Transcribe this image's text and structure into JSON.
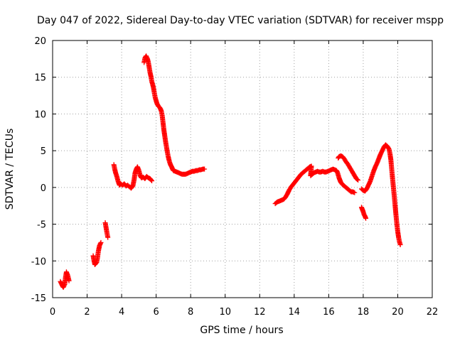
{
  "chart_data": {
    "type": "scatter",
    "title": "Day 047 of 2022, Sidereal Day-to-day VTEC variation (SDTVAR) for receiver mspp",
    "xlabel": "GPS time / hours",
    "ylabel": "SDTVAR / TECUs",
    "xlim": [
      0,
      22
    ],
    "ylim": [
      -15,
      20
    ],
    "xticks": [
      0,
      2,
      4,
      6,
      8,
      10,
      12,
      14,
      16,
      18,
      20,
      22
    ],
    "yticks": [
      -15,
      -10,
      -5,
      0,
      5,
      10,
      15,
      20
    ],
    "grid": true,
    "marker": "+",
    "color": "#ff0000",
    "series": [
      {
        "name": "SDTVAR",
        "segments": [
          [
            [
              0.45,
              -12.8
            ],
            [
              0.55,
              -13.3
            ],
            [
              0.62,
              -13.6
            ],
            [
              0.7,
              -13.2
            ],
            [
              0.75,
              -12.2
            ],
            [
              0.8,
              -11.5
            ],
            [
              0.88,
              -12.0
            ],
            [
              0.95,
              -12.7
            ]
          ],
          [
            [
              2.35,
              -9.3
            ],
            [
              2.4,
              -10.0
            ],
            [
              2.45,
              -10.5
            ],
            [
              2.55,
              -10.2
            ],
            [
              2.6,
              -9.6
            ],
            [
              2.65,
              -8.7
            ],
            [
              2.72,
              -7.9
            ],
            [
              2.8,
              -7.5
            ]
          ],
          [
            [
              3.05,
              -4.8
            ],
            [
              3.1,
              -5.5
            ],
            [
              3.15,
              -6.2
            ],
            [
              3.2,
              -6.8
            ]
          ],
          [
            [
              3.55,
              3.1
            ],
            [
              3.6,
              2.5
            ],
            [
              3.65,
              2.0
            ],
            [
              3.72,
              1.5
            ],
            [
              3.8,
              0.8
            ],
            [
              3.88,
              0.3
            ],
            [
              3.95,
              0.5
            ],
            [
              4.05,
              0.3
            ],
            [
              4.15,
              0.5
            ],
            [
              4.25,
              0.2
            ],
            [
              4.35,
              0.3
            ],
            [
              4.45,
              0.1
            ],
            [
              4.55,
              -0.1
            ],
            [
              4.65,
              0.2
            ],
            [
              4.72,
              1.0
            ],
            [
              4.78,
              2.0
            ],
            [
              4.85,
              2.5
            ],
            [
              4.92,
              2.8
            ],
            [
              5.0,
              2.3
            ],
            [
              5.08,
              1.6
            ],
            [
              5.15,
              1.3
            ],
            [
              5.25,
              1.4
            ],
            [
              5.35,
              1.2
            ],
            [
              5.45,
              1.5
            ],
            [
              5.55,
              1.3
            ],
            [
              5.65,
              1.2
            ],
            [
              5.75,
              0.9
            ]
          ],
          [
            [
              5.3,
              17.0
            ],
            [
              5.35,
              17.6
            ],
            [
              5.42,
              17.9
            ],
            [
              5.5,
              17.5
            ],
            [
              5.55,
              17.0
            ],
            [
              5.6,
              16.3
            ],
            [
              5.65,
              15.6
            ],
            [
              5.7,
              15.1
            ],
            [
              5.75,
              14.4
            ],
            [
              5.8,
              14.0
            ],
            [
              5.85,
              13.5
            ],
            [
              5.9,
              12.8
            ],
            [
              5.95,
              12.2
            ],
            [
              6.0,
              11.8
            ],
            [
              6.05,
              11.4
            ],
            [
              6.1,
              11.2
            ],
            [
              6.15,
              11.0
            ],
            [
              6.2,
              10.9
            ],
            [
              6.25,
              10.7
            ],
            [
              6.3,
              10.4
            ],
            [
              6.35,
              9.8
            ],
            [
              6.4,
              8.8
            ],
            [
              6.45,
              7.8
            ],
            [
              6.5,
              7.0
            ],
            [
              6.55,
              6.2
            ],
            [
              6.6,
              5.5
            ],
            [
              6.65,
              4.8
            ],
            [
              6.7,
              4.2
            ],
            [
              6.75,
              3.7
            ],
            [
              6.8,
              3.3
            ],
            [
              6.85,
              3.0
            ],
            [
              6.9,
              2.8
            ],
            [
              6.95,
              2.5
            ],
            [
              7.0,
              2.3
            ],
            [
              7.1,
              2.2
            ],
            [
              7.2,
              2.1
            ],
            [
              7.3,
              2.0
            ],
            [
              7.4,
              1.9
            ],
            [
              7.5,
              1.8
            ],
            [
              7.6,
              1.8
            ],
            [
              7.7,
              1.8
            ],
            [
              7.8,
              1.9
            ],
            [
              7.9,
              2.0
            ],
            [
              8.0,
              2.1
            ],
            [
              8.1,
              2.2
            ],
            [
              8.2,
              2.2
            ],
            [
              8.3,
              2.3
            ],
            [
              8.4,
              2.3
            ],
            [
              8.5,
              2.4
            ],
            [
              8.6,
              2.4
            ],
            [
              8.7,
              2.5
            ],
            [
              8.8,
              2.5
            ]
          ],
          [
            [
              12.9,
              -2.2
            ],
            [
              13.0,
              -2.0
            ],
            [
              13.1,
              -1.9
            ],
            [
              13.2,
              -1.8
            ],
            [
              13.3,
              -1.7
            ],
            [
              13.4,
              -1.6
            ],
            [
              13.5,
              -1.3
            ],
            [
              13.6,
              -0.9
            ],
            [
              13.7,
              -0.4
            ],
            [
              13.8,
              0.0
            ],
            [
              13.9,
              0.3
            ],
            [
              14.0,
              0.6
            ],
            [
              14.1,
              0.9
            ],
            [
              14.2,
              1.2
            ],
            [
              14.3,
              1.5
            ],
            [
              14.4,
              1.8
            ],
            [
              14.5,
              2.0
            ],
            [
              14.6,
              2.2
            ],
            [
              14.7,
              2.4
            ],
            [
              14.8,
              2.6
            ],
            [
              14.9,
              2.8
            ],
            [
              15.0,
              2.9
            ],
            [
              14.95,
              1.6
            ],
            [
              15.05,
              1.8
            ],
            [
              15.15,
              2.0
            ],
            [
              15.25,
              2.1
            ],
            [
              15.35,
              2.2
            ],
            [
              15.45,
              2.1
            ],
            [
              15.55,
              2.1
            ],
            [
              15.65,
              2.2
            ],
            [
              15.75,
              2.1
            ],
            [
              15.85,
              2.1
            ],
            [
              15.95,
              2.2
            ],
            [
              16.05,
              2.3
            ],
            [
              16.15,
              2.4
            ],
            [
              16.25,
              2.5
            ],
            [
              16.35,
              2.4
            ],
            [
              16.45,
              2.3
            ],
            [
              16.5,
              2.1
            ],
            [
              16.55,
              1.7
            ],
            [
              16.6,
              1.3
            ],
            [
              16.65,
              1.0
            ],
            [
              16.7,
              0.7
            ],
            [
              16.8,
              0.4
            ],
            [
              16.9,
              0.2
            ],
            [
              17.0,
              0.0
            ],
            [
              17.1,
              -0.2
            ],
            [
              17.2,
              -0.4
            ],
            [
              17.3,
              -0.6
            ],
            [
              17.4,
              -0.6
            ],
            [
              17.5,
              -0.7
            ]
          ],
          [
            [
              16.55,
              4.0
            ],
            [
              16.6,
              4.2
            ],
            [
              16.7,
              4.3
            ],
            [
              16.8,
              4.2
            ],
            [
              16.9,
              3.9
            ],
            [
              17.0,
              3.5
            ],
            [
              17.1,
              3.2
            ],
            [
              17.2,
              2.8
            ],
            [
              17.3,
              2.4
            ],
            [
              17.4,
              2.0
            ],
            [
              17.5,
              1.6
            ],
            [
              17.6,
              1.2
            ],
            [
              17.7,
              1.0
            ]
          ],
          [
            [
              17.9,
              -2.7
            ],
            [
              17.95,
              -3.0
            ],
            [
              18.0,
              -3.3
            ],
            [
              18.05,
              -3.7
            ],
            [
              18.1,
              -3.9
            ],
            [
              18.15,
              -4.2
            ]
          ],
          [
            [
              17.9,
              -0.2
            ],
            [
              18.0,
              -0.4
            ],
            [
              18.1,
              -0.5
            ],
            [
              18.2,
              -0.2
            ],
            [
              18.3,
              0.3
            ],
            [
              18.4,
              0.8
            ],
            [
              18.5,
              1.5
            ],
            [
              18.6,
              2.2
            ],
            [
              18.7,
              2.8
            ],
            [
              18.8,
              3.3
            ],
            [
              18.9,
              3.9
            ],
            [
              19.0,
              4.5
            ],
            [
              19.1,
              5.0
            ],
            [
              19.2,
              5.5
            ],
            [
              19.3,
              5.8
            ],
            [
              19.4,
              5.6
            ],
            [
              19.5,
              5.2
            ],
            [
              19.55,
              4.6
            ],
            [
              19.6,
              3.8
            ],
            [
              19.65,
              2.5
            ],
            [
              19.7,
              1.2
            ],
            [
              19.75,
              0.0
            ],
            [
              19.8,
              -1.2
            ],
            [
              19.85,
              -2.5
            ],
            [
              19.9,
              -3.8
            ],
            [
              19.95,
              -5.0
            ],
            [
              20.0,
              -6.0
            ],
            [
              20.05,
              -6.8
            ],
            [
              20.1,
              -7.4
            ],
            [
              20.15,
              -7.8
            ]
          ]
        ]
      }
    ]
  }
}
